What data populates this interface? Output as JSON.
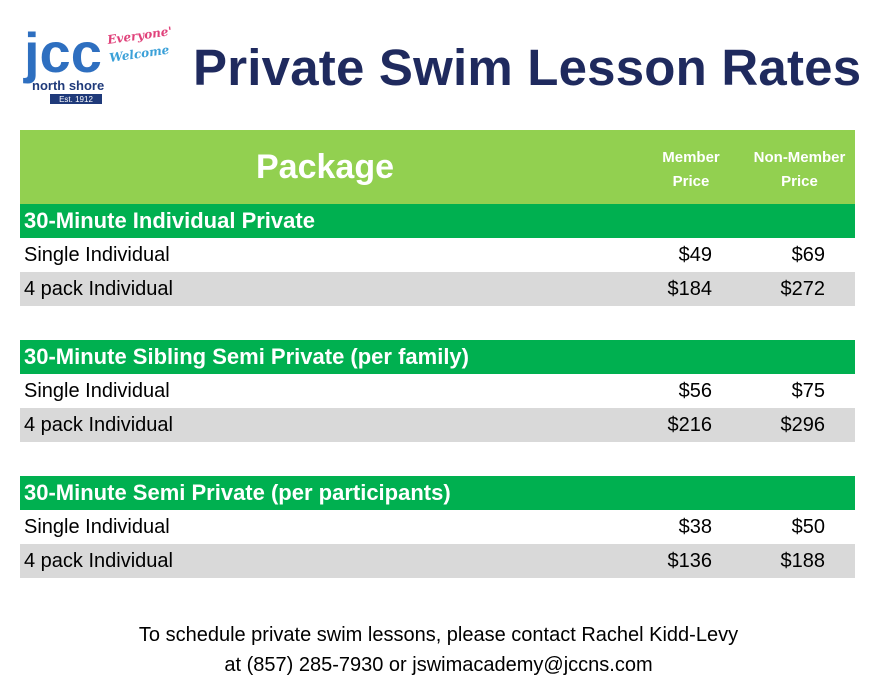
{
  "logo": {
    "letters": "jcc",
    "tagline_line1": "Everyone's",
    "tagline_line2": "Welcome",
    "subtitle": "north shore",
    "established": "Est. 1912",
    "colors": {
      "blue": "#2e6fc0",
      "green": "#4caf50",
      "navy": "#1f3a7a"
    }
  },
  "title": "Private Swim Lesson Rates",
  "table": {
    "header": {
      "package": "Package",
      "member_price": [
        "Member",
        "Price"
      ],
      "non_member_price": [
        "Non-Member",
        "Price"
      ]
    },
    "sections": [
      {
        "title": "30-Minute Individual Private",
        "rows": [
          {
            "name": "Single Individual",
            "member": "$49",
            "non_member": "$69"
          },
          {
            "name": "4 pack Individual",
            "member": "$184",
            "non_member": "$272"
          }
        ]
      },
      {
        "title": "30-Minute Sibling Semi Private (per family)",
        "rows": [
          {
            "name": "Single Individual",
            "member": "$56",
            "non_member": "$75"
          },
          {
            "name": "4 pack Individual",
            "member": "$216",
            "non_member": "$296"
          }
        ]
      },
      {
        "title": "30-Minute Semi Private (per participants)",
        "rows": [
          {
            "name": "Single Individual",
            "member": "$38",
            "non_member": "$50"
          },
          {
            "name": "4 pack Individual",
            "member": "$136",
            "non_member": "$188"
          }
        ]
      }
    ]
  },
  "footer": {
    "line1": "To schedule private swim lessons, please contact Rachel Kidd-Levy",
    "line2": "at (857) 285-7930 or jswimacademy@jccns.com"
  },
  "colors": {
    "title": "#1f2a5e",
    "header_bg": "#92d050",
    "section_bg": "#00b050",
    "alt_row": "#d9d9d9"
  }
}
